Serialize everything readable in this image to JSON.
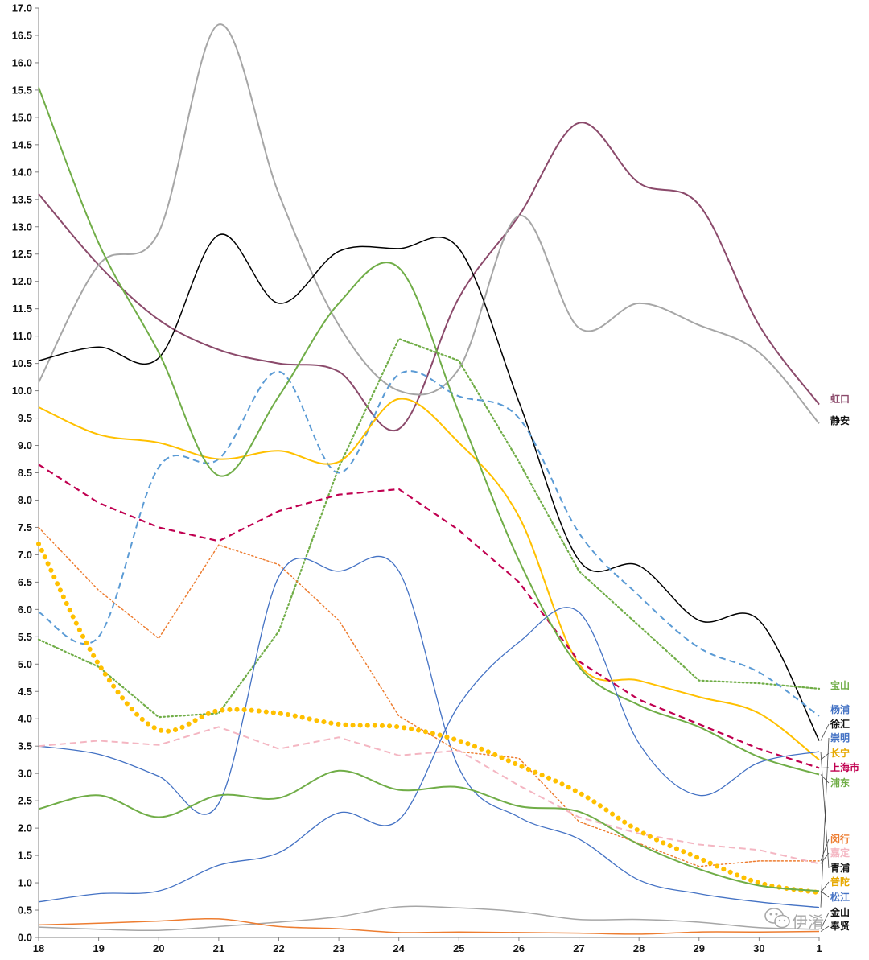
{
  "chart_data": {
    "type": "line",
    "title": "",
    "xlabel": "",
    "ylabel": "",
    "x_tick_labels": [
      "18",
      "19",
      "20",
      "21",
      "22",
      "23",
      "24",
      "25",
      "26",
      "27",
      "28",
      "29",
      "30",
      "1"
    ],
    "ylim": [
      0,
      17
    ],
    "y_tick_step": 0.5,
    "y_tick_labels": [
      "0.0",
      "0.5",
      "1.0",
      "1.5",
      "2.0",
      "2.5",
      "3.0",
      "3.5",
      "4.0",
      "4.5",
      "5.0",
      "5.5",
      "6.0",
      "6.5",
      "7.0",
      "7.5",
      "8.0",
      "8.5",
      "9.0",
      "9.5",
      "10.0",
      "10.5",
      "11.0",
      "11.5",
      "12.0",
      "12.5",
      "13.0",
      "13.5",
      "14.0",
      "14.5",
      "15.0",
      "15.5",
      "16.0",
      "16.5",
      "17.0"
    ],
    "grid": false,
    "legend": "labels at right end of lines",
    "series": [
      {
        "name": "虹口",
        "color": "#8B4A6B",
        "dash": "solid",
        "width": 2,
        "smooth": true,
        "values": [
          13.6,
          12.3,
          11.3,
          10.75,
          10.5,
          10.35,
          9.3,
          11.7,
          13.2,
          14.9,
          13.8,
          13.4,
          11.2,
          9.75
        ]
      },
      {
        "name": "静安",
        "color": "#A6A6A6",
        "dash": "solid",
        "width": 2,
        "smooth": true,
        "values": [
          10.15,
          12.3,
          12.9,
          16.7,
          13.6,
          11.2,
          10.0,
          10.4,
          13.2,
          11.15,
          11.6,
          11.2,
          10.7,
          9.4
        ]
      },
      {
        "name": "徐汇",
        "color": "#000000",
        "dash": "solid",
        "width": 1.5,
        "smooth": true,
        "values": [
          10.55,
          10.8,
          10.6,
          12.85,
          11.6,
          12.55,
          12.6,
          12.6,
          9.8,
          6.9,
          6.8,
          5.8,
          5.8,
          3.6
        ]
      },
      {
        "name": "宝山",
        "color": "#70AD47",
        "dash": "dot",
        "width": 2.2,
        "smooth": false,
        "values": [
          5.45,
          4.95,
          4.03,
          4.1,
          5.6,
          8.6,
          10.95,
          10.55,
          8.7,
          6.7,
          5.7,
          4.7,
          4.65,
          4.55
        ]
      },
      {
        "name": "杨浦",
        "color": "#5B9BD5",
        "dash": "dash",
        "width": 2,
        "smooth": true,
        "values": [
          5.95,
          5.5,
          8.6,
          8.75,
          10.35,
          8.5,
          10.3,
          9.9,
          9.5,
          7.4,
          6.25,
          5.3,
          4.85,
          4.05
        ]
      },
      {
        "name": "长宁",
        "color": "#FFC000",
        "dash": "solid",
        "width": 2,
        "smooth": true,
        "values": [
          9.7,
          9.2,
          9.05,
          8.75,
          8.9,
          8.7,
          9.85,
          9.05,
          7.7,
          5.0,
          4.7,
          4.4,
          4.1,
          3.25
        ]
      },
      {
        "name": "上海市",
        "color": "#C00050",
        "dash": "dash",
        "width": 2.2,
        "smooth": false,
        "values": [
          8.65,
          7.95,
          7.5,
          7.25,
          7.8,
          8.1,
          8.2,
          7.45,
          6.5,
          5.05,
          4.35,
          3.9,
          3.45,
          3.1
        ]
      },
      {
        "name": "崇明",
        "color": "#4472C4",
        "dash": "solid",
        "width": 1.3,
        "smooth": true,
        "values": [
          3.5,
          3.35,
          2.95,
          2.45,
          6.6,
          6.7,
          6.7,
          3.1,
          2.2,
          1.8,
          1.05,
          0.8,
          0.65,
          0.55
        ]
      },
      {
        "name": "浦东",
        "color": "#70AD47",
        "dash": "solid",
        "width": 2,
        "smooth": true,
        "values": [
          15.55,
          12.7,
          10.7,
          8.45,
          9.9,
          11.6,
          12.25,
          9.6,
          6.9,
          4.95,
          4.25,
          3.85,
          3.3,
          2.98
        ]
      },
      {
        "name": "闵行",
        "color": "#ED7D31",
        "dash": "dot",
        "width": 1.5,
        "smooth": false,
        "values": [
          7.5,
          6.35,
          5.47,
          7.18,
          6.82,
          5.8,
          4.05,
          3.4,
          3.28,
          2.12,
          1.72,
          1.3,
          1.4,
          1.4
        ]
      },
      {
        "name": "嘉定",
        "color": "#F4B6C2",
        "dash": "dash",
        "width": 2,
        "smooth": false,
        "values": [
          3.5,
          3.6,
          3.52,
          3.85,
          3.45,
          3.66,
          3.33,
          3.42,
          2.78,
          2.2,
          1.9,
          1.7,
          1.6,
          1.35
        ]
      },
      {
        "name": "青浦",
        "color": "#4472C4",
        "dash": "solid",
        "width": 1.3,
        "smooth": true,
        "values": [
          0.65,
          0.8,
          0.85,
          1.32,
          1.55,
          2.28,
          2.15,
          4.25,
          5.4,
          5.95,
          3.55,
          2.6,
          3.2,
          3.4
        ]
      },
      {
        "name": "普陀",
        "color": "#FFC000",
        "dash": "bigdot",
        "width": 6,
        "smooth": true,
        "values": [
          7.2,
          5.0,
          3.8,
          4.15,
          4.1,
          3.9,
          3.85,
          3.6,
          3.15,
          2.65,
          1.95,
          1.45,
          1.0,
          0.82
        ]
      },
      {
        "name": "松江",
        "color": "#70AD47",
        "dash": "solid",
        "width": 2,
        "smooth": true,
        "values": [
          2.35,
          2.6,
          2.2,
          2.6,
          2.55,
          3.05,
          2.7,
          2.75,
          2.4,
          2.3,
          1.7,
          1.25,
          0.95,
          0.85
        ]
      },
      {
        "name": "金山",
        "color": "#A6A6A6",
        "dash": "solid",
        "width": 1.5,
        "smooth": true,
        "values": [
          0.19,
          0.15,
          0.13,
          0.2,
          0.28,
          0.38,
          0.56,
          0.54,
          0.47,
          0.33,
          0.33,
          0.28,
          0.18,
          0.15
        ]
      },
      {
        "name": "奉贤",
        "color": "#ED7D31",
        "dash": "solid",
        "width": 1.5,
        "smooth": true,
        "values": [
          0.23,
          0.26,
          0.3,
          0.34,
          0.2,
          0.16,
          0.09,
          0.1,
          0.09,
          0.08,
          0.06,
          0.1,
          0.1,
          0.11
        ]
      }
    ],
    "end_labels": [
      {
        "text": "虹口",
        "color": "#8B4A6B"
      },
      {
        "text": "静安",
        "color": "#111111"
      },
      {
        "text": "宝山",
        "color": "#70AD47"
      },
      {
        "text": "杨浦",
        "color": "#4472C4"
      },
      {
        "text": "徐汇",
        "color": "#111111"
      },
      {
        "text": "崇明",
        "color": "#4472C4"
      },
      {
        "text": "长宁",
        "color": "#E6A800"
      },
      {
        "text": "上海市",
        "color": "#C00050"
      },
      {
        "text": "浦东",
        "color": "#70AD47"
      },
      {
        "text": "闵行",
        "color": "#ED7D31"
      },
      {
        "text": "嘉定",
        "color": "#F4B6C2"
      },
      {
        "text": "青浦",
        "color": "#111111"
      },
      {
        "text": "普陀",
        "color": "#E6A800"
      },
      {
        "text": "松江",
        "color": "#4472C4"
      },
      {
        "text": "金山",
        "color": "#111111"
      },
      {
        "text": "奉贤",
        "color": "#111111"
      }
    ]
  },
  "watermark": {
    "text": "伊淆",
    "icon": "wechat-icon"
  }
}
